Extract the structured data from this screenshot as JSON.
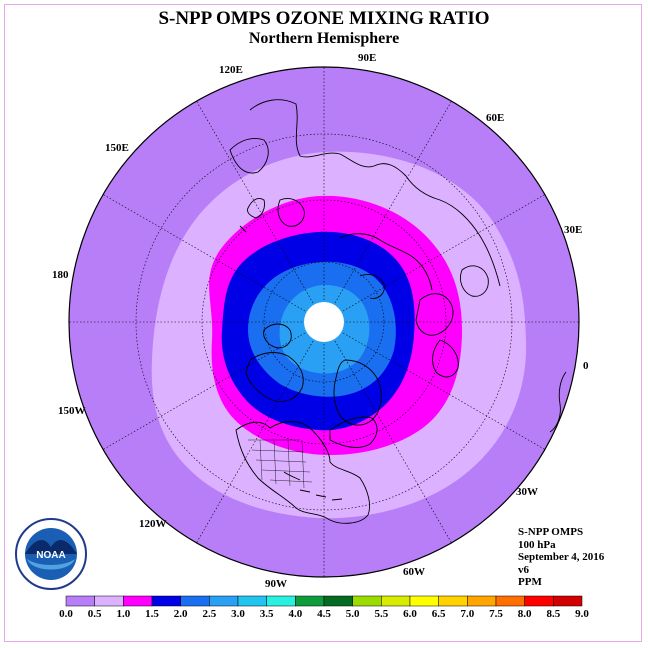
{
  "title": "S-NPP OMPS OZONE MIXING RATIO",
  "subtitle": "Northern Hemisphere",
  "longitude_labels": [
    "90E",
    "60E",
    "30E",
    "0",
    "30W",
    "60W",
    "90W",
    "120W",
    "150W",
    "180",
    "150E",
    "120E"
  ],
  "info": {
    "instrument": "S-NPP OMPS",
    "level": "100 hPa",
    "date": "September 4, 2016",
    "version": "v6",
    "units": "PPM"
  },
  "logo": {
    "text": "NOAA"
  },
  "colorbar": {
    "ticks": [
      "0.0",
      "0.5",
      "1.0",
      "1.5",
      "2.0",
      "2.5",
      "3.0",
      "3.5",
      "4.0",
      "4.5",
      "5.0",
      "5.5",
      "6.0",
      "6.5",
      "7.0",
      "7.5",
      "8.0",
      "8.5",
      "9.0"
    ],
    "colors": [
      "#b77ef7",
      "#dcb1ff",
      "#ff00ff",
      "#0000e6",
      "#1a6ef0",
      "#2aa0f5",
      "#23c5f0",
      "#2af0e0",
      "#0f9b3c",
      "#056b23",
      "#9adc00",
      "#d7ec00",
      "#ffff00",
      "#ffd200",
      "#ffa500",
      "#ff6e00",
      "#ff0000",
      "#d20000",
      "#8b5a3c"
    ]
  },
  "map_colors": {
    "level_0_0.5": "#b77ef7",
    "level_0.5_1.0": "#dcb1ff",
    "level_1.0_1.5": "#ff00ff",
    "level_1.5_2.0": "#0000e6",
    "level_2.0_2.5": "#1a6ef0",
    "level_2.5_3.0": "#2aa0f5",
    "pole_missing": "#ffffff"
  }
}
